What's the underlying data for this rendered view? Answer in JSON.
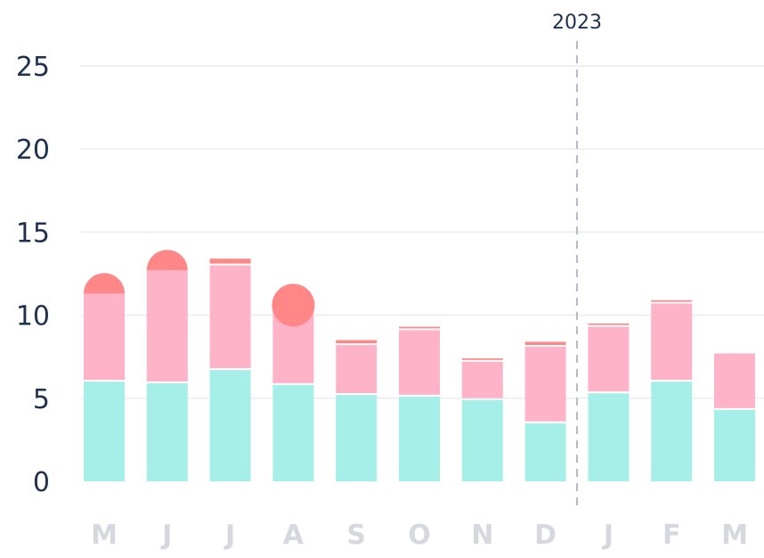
{
  "chart_data": {
    "type": "bar",
    "stacked": true,
    "categories": [
      "M",
      "J",
      "J",
      "A",
      "S",
      "O",
      "N",
      "D",
      "J",
      "F",
      "M"
    ],
    "series": [
      {
        "values": [
          6.0,
          5.9,
          6.7,
          5.8,
          5.2,
          5.1,
          4.9,
          3.5,
          5.3,
          6.0,
          4.3
        ],
        "color": "#a6efe9"
      },
      {
        "values": [
          5.3,
          6.8,
          6.3,
          4.8,
          3.0,
          4.0,
          2.3,
          4.6,
          4.0,
          4.7,
          3.4
        ],
        "color": "#ffb3c9"
      },
      {
        "values": [
          0.0,
          0.0,
          0.4,
          0.0,
          0.3,
          0.2,
          0.2,
          0.3,
          0.2,
          0.2,
          0.0
        ],
        "color": "#ff8787"
      }
    ],
    "markers": [
      {
        "category_index": 0,
        "value": 11.3,
        "shape": "half-circle",
        "color": "#ff8787"
      },
      {
        "category_index": 1,
        "value": 12.7,
        "shape": "half-circle",
        "color": "#ff8787"
      },
      {
        "category_index": 3,
        "value": 10.6,
        "shape": "circle",
        "color": "#ff8787"
      }
    ],
    "yticks": [
      "0",
      "5",
      "10",
      "15",
      "20",
      "25"
    ],
    "ylim": [
      0,
      25
    ],
    "grid": true,
    "annotation": {
      "label": "2023",
      "between_index": 8
    }
  }
}
